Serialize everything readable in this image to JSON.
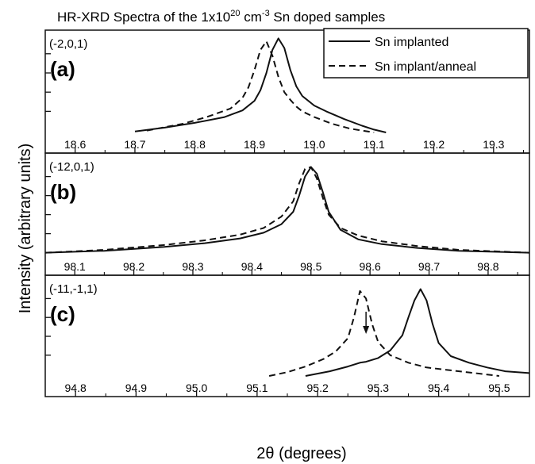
{
  "figure": {
    "title_prefix": "HR-XRD Spectra of the 1x10",
    "title_sup1": "20",
    "title_mid": " cm",
    "title_sup2": "-3",
    "title_suffix": " Sn doped samples",
    "ylabel": "Intensity (arbitrary units)",
    "xlabel": "2θ (degrees)"
  },
  "legend": {
    "solid_label": "Sn implanted",
    "dashed_label": "Sn implant/anneal"
  },
  "colors": {
    "line": "#111111",
    "frame": "#111111"
  },
  "chart_data": [
    {
      "type": "line",
      "panel_id": "(-2,0,1)",
      "panel_letter": "(a)",
      "xlim": [
        18.55,
        19.36
      ],
      "ylim": [
        0,
        1
      ],
      "x_ticks": [
        "18.6",
        "18.7",
        "18.8",
        "18.9",
        "19.0",
        "19.1",
        "19.2",
        "19.3"
      ],
      "y_ticks": [
        0.22,
        0.42,
        0.62,
        0.82
      ],
      "series": [
        {
          "name": "Sn implanted",
          "style": "solid",
          "x": [
            18.7,
            18.75,
            18.8,
            18.85,
            18.88,
            18.9,
            18.91,
            18.92,
            18.93,
            18.94,
            18.95,
            18.96,
            18.97,
            18.98,
            19.0,
            19.02,
            19.05,
            19.08,
            19.1,
            19.12
          ],
          "y": [
            0.01,
            0.05,
            0.1,
            0.16,
            0.23,
            0.33,
            0.44,
            0.62,
            0.86,
            0.98,
            0.88,
            0.65,
            0.48,
            0.38,
            0.28,
            0.22,
            0.14,
            0.07,
            0.03,
            0.0
          ]
        },
        {
          "name": "Sn implant/anneal",
          "style": "dashed",
          "x": [
            18.72,
            18.78,
            18.82,
            18.86,
            18.88,
            18.89,
            18.9,
            18.91,
            18.92,
            18.93,
            18.94,
            18.95,
            18.96,
            18.97,
            18.98,
            19.0,
            19.03,
            19.06,
            19.1
          ],
          "y": [
            0.02,
            0.09,
            0.16,
            0.25,
            0.36,
            0.47,
            0.65,
            0.86,
            0.95,
            0.8,
            0.58,
            0.42,
            0.34,
            0.27,
            0.22,
            0.16,
            0.09,
            0.04,
            0.0
          ]
        }
      ]
    },
    {
      "type": "line",
      "panel_id": "(-12,0,1)",
      "panel_letter": "(b)",
      "xlim": [
        98.05,
        98.87
      ],
      "ylim": [
        0,
        1
      ],
      "x_ticks": [
        "98.1",
        "98.2",
        "98.3",
        "98.4",
        "98.5",
        "98.6",
        "98.7",
        "98.8"
      ],
      "y_ticks": [
        0.22,
        0.42,
        0.62,
        0.82
      ],
      "series": [
        {
          "name": "Sn implanted",
          "style": "solid",
          "x": [
            98.05,
            98.15,
            98.25,
            98.32,
            98.38,
            98.42,
            98.45,
            98.47,
            98.48,
            98.49,
            98.5,
            98.51,
            98.52,
            98.53,
            98.55,
            98.58,
            98.62,
            98.68,
            98.75,
            98.87
          ],
          "y": [
            0.02,
            0.04,
            0.08,
            0.12,
            0.17,
            0.23,
            0.32,
            0.45,
            0.62,
            0.82,
            0.92,
            0.85,
            0.66,
            0.45,
            0.26,
            0.16,
            0.11,
            0.07,
            0.04,
            0.02
          ]
        },
        {
          "name": "Sn implant/anneal",
          "style": "dashed",
          "x": [
            98.05,
            98.15,
            98.25,
            98.32,
            98.38,
            98.42,
            98.45,
            98.47,
            98.48,
            98.49,
            98.5,
            98.51,
            98.52,
            98.53,
            98.55,
            98.58,
            98.62,
            98.68,
            98.75,
            98.87
          ],
          "y": [
            0.02,
            0.05,
            0.1,
            0.15,
            0.21,
            0.28,
            0.4,
            0.56,
            0.75,
            0.9,
            0.92,
            0.8,
            0.6,
            0.42,
            0.28,
            0.2,
            0.14,
            0.09,
            0.05,
            0.02
          ]
        }
      ]
    },
    {
      "type": "line",
      "panel_id": "(-11,-1,1)",
      "panel_letter": "(c)",
      "xlim": [
        94.75,
        95.55
      ],
      "ylim": [
        0,
        1
      ],
      "x_ticks": [
        "94.8",
        "94.9",
        "95.0",
        "95.1",
        "95.2",
        "95.3",
        "95.4",
        "95.5"
      ],
      "y_ticks": [
        0.22,
        0.42,
        0.62,
        0.82
      ],
      "annotation": {
        "type": "arrow",
        "x": 95.28
      },
      "series": [
        {
          "name": "Sn implanted",
          "style": "solid",
          "x": [
            95.18,
            95.22,
            95.25,
            95.27,
            95.28,
            95.3,
            95.32,
            95.34,
            95.35,
            95.36,
            95.37,
            95.38,
            95.39,
            95.4,
            95.42,
            95.45,
            95.48,
            95.51,
            95.55
          ],
          "y": [
            0.0,
            0.05,
            0.1,
            0.14,
            0.15,
            0.19,
            0.27,
            0.43,
            0.62,
            0.8,
            0.92,
            0.8,
            0.55,
            0.35,
            0.21,
            0.14,
            0.09,
            0.05,
            0.03
          ]
        },
        {
          "name": "Sn implant/anneal",
          "style": "dashed",
          "x": [
            95.12,
            95.15,
            95.18,
            95.21,
            95.23,
            95.25,
            95.26,
            95.27,
            95.28,
            95.29,
            95.3,
            95.32,
            95.35,
            95.38,
            95.42,
            95.46,
            95.5
          ],
          "y": [
            0.0,
            0.04,
            0.1,
            0.18,
            0.26,
            0.4,
            0.62,
            0.9,
            0.82,
            0.55,
            0.36,
            0.22,
            0.14,
            0.09,
            0.06,
            0.03,
            0.0
          ]
        }
      ]
    }
  ]
}
